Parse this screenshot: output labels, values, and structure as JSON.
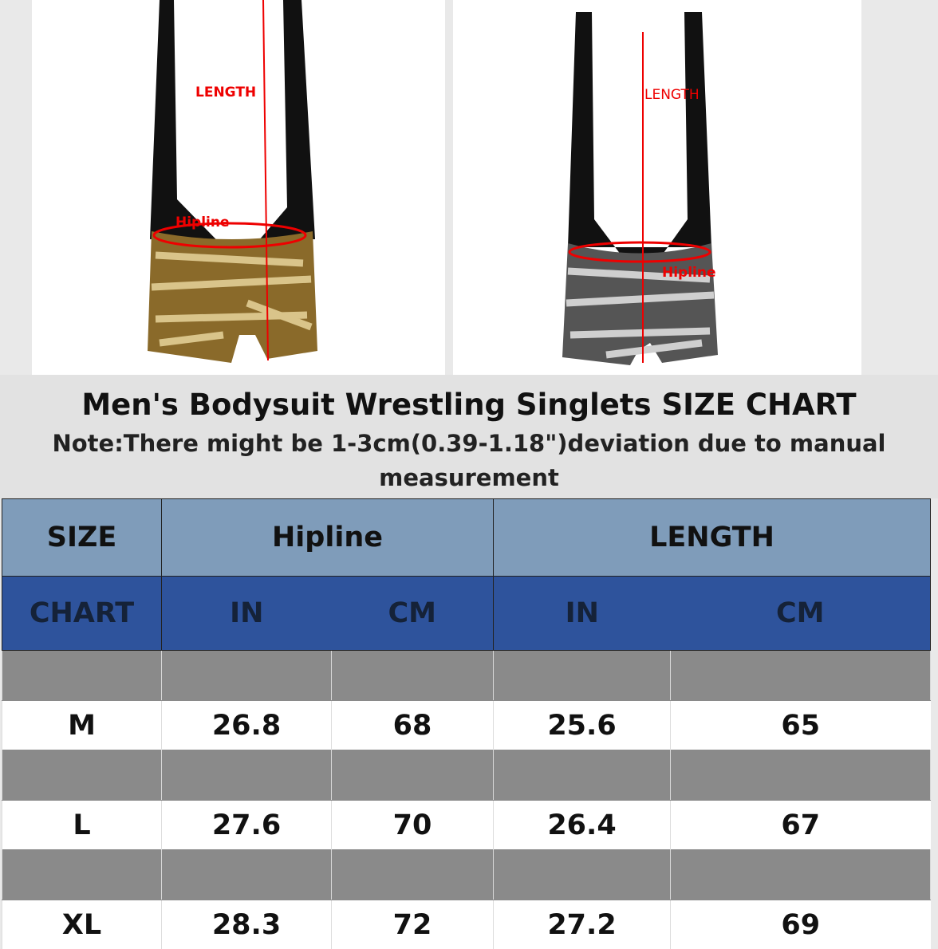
{
  "images": [
    {
      "length_label": "LENGTH",
      "hipline_label": "Hipline"
    },
    {
      "length_label": "LENGTH",
      "hipline_label": "Hipline"
    }
  ],
  "header": {
    "title": "Men's Bodysuit Wrestling Singlets SIZE CHART",
    "note": "Note:There might be 1-3cm(0.39-1.18\")deviation due to manual measurement"
  },
  "table": {
    "header_row1": [
      "SIZE",
      "Hipline",
      "LENGTH"
    ],
    "header_row2": [
      "CHART",
      "IN",
      "CM",
      "IN",
      "CM"
    ],
    "rows": [
      [
        "M",
        26.8,
        68,
        25.6,
        65
      ],
      [
        "L",
        27.6,
        70,
        26.4,
        67
      ],
      [
        "XL",
        28.3,
        72,
        27.2,
        69
      ]
    ]
  }
}
